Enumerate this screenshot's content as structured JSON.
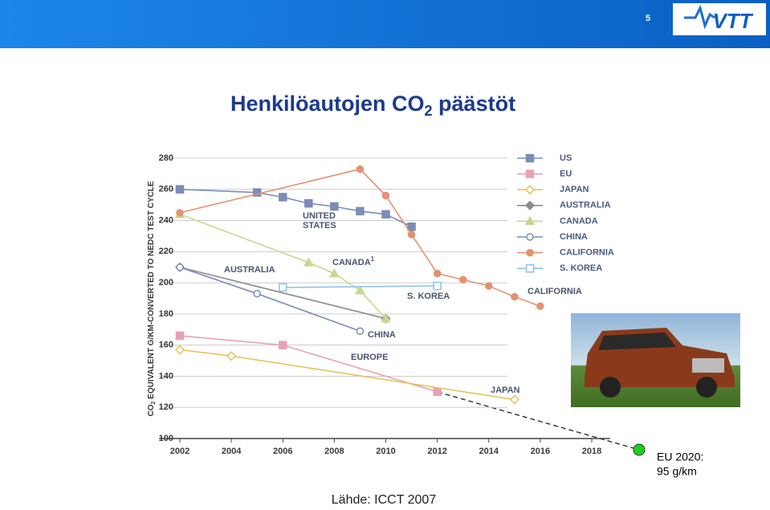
{
  "page_number": "5",
  "logo": "VTT",
  "title": [
    "Henkilöautojen CO",
    "2",
    " päästöt"
  ],
  "source": "Lähde: ICCT 2007",
  "target": {
    "lines": [
      "EU 2020:",
      "95 g/km"
    ]
  },
  "chart_data": {
    "type": "line",
    "y_label": [
      "CO",
      "2",
      " EQUIVALENT G/KM-CONVERTED TO NEDC TEST CYCLE"
    ],
    "xlim": [
      2002,
      2018
    ],
    "xticks": [
      2002,
      2004,
      2006,
      2008,
      2010,
      2012,
      2014,
      2016,
      2018
    ],
    "ylim": [
      100,
      280
    ],
    "yticks": [
      100,
      120,
      140,
      160,
      180,
      200,
      220,
      240,
      260,
      280
    ],
    "grid": true,
    "series": [
      {
        "name": "US",
        "color": "#7b8db8",
        "marker": "square",
        "filled": true,
        "x": [
          2002,
          2005,
          2006,
          2007,
          2008,
          2009,
          2010,
          2011
        ],
        "values": [
          260,
          258,
          255,
          251,
          249,
          246,
          244,
          236
        ]
      },
      {
        "name": "EU",
        "color": "#e8a2b4",
        "marker": "square",
        "filled": true,
        "x": [
          2002,
          2006,
          2012
        ],
        "values": [
          166,
          160,
          130
        ]
      },
      {
        "name": "JAPAN",
        "color": "#e6c25e",
        "marker": "diamond",
        "filled": false,
        "x": [
          2002,
          2004,
          2015
        ],
        "values": [
          157,
          153,
          125
        ]
      },
      {
        "name": "AUSTRALIA",
        "color": "#8c8c8c",
        "marker": "diamond",
        "filled": true,
        "x": [
          2002,
          2010
        ],
        "values": [
          210,
          177
        ]
      },
      {
        "name": "CANADA",
        "color": "#c5d98c",
        "marker": "triangle",
        "filled": true,
        "x": [
          2002,
          2007,
          2008,
          2009,
          2010
        ],
        "values": [
          244,
          213,
          206,
          195,
          177
        ]
      },
      {
        "name": "CHINA",
        "color": "#7b8db8",
        "marker": "circle",
        "filled": false,
        "x": [
          2002,
          2005,
          2009
        ],
        "values": [
          210,
          193,
          169
        ]
      },
      {
        "name": "CALIFORNIA",
        "color": "#e39272",
        "marker": "circle",
        "filled": true,
        "x": [
          2002,
          2009,
          2010,
          2011,
          2012,
          2013,
          2014,
          2015,
          2016
        ],
        "values": [
          245,
          273,
          256,
          231,
          206,
          202,
          198,
          191,
          185
        ]
      },
      {
        "name": "S. KOREA",
        "color": "#8fc3e6",
        "marker": "square",
        "filled": false,
        "x": [
          2006,
          2012
        ],
        "values": [
          197,
          198
        ]
      }
    ],
    "annotations": [
      "UNITED",
      "STATES",
      "AUSTRALIA",
      [
        "CANADA",
        "1"
      ],
      "S. KOREA",
      "CALIFORNIA",
      "CHINA",
      "EUROPE",
      "JAPAN"
    ]
  }
}
